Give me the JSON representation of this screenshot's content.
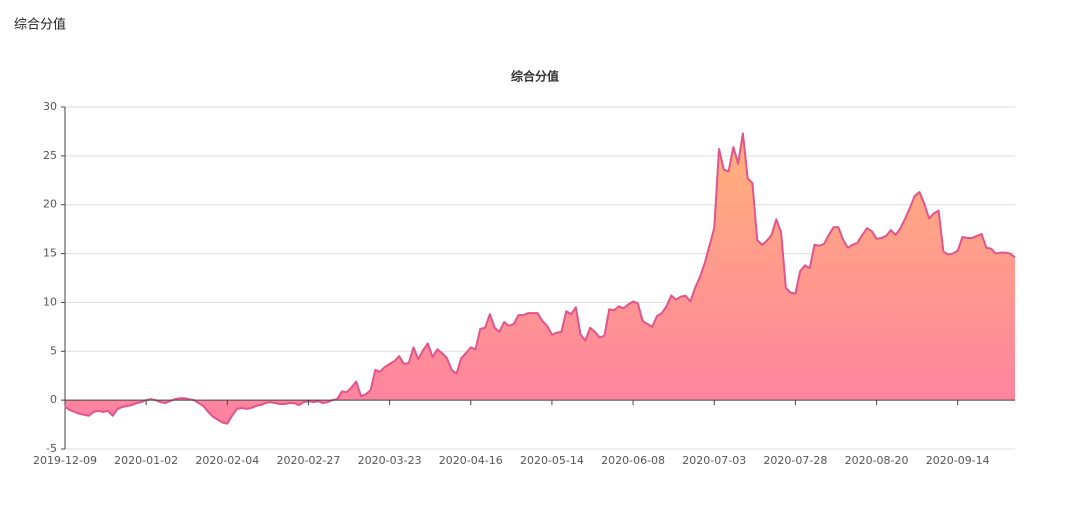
{
  "page_title": "综合分值",
  "chart_data": {
    "type": "area",
    "title": "综合分值",
    "categories": [
      "2019-12-09",
      null,
      null,
      null,
      null,
      null,
      null,
      null,
      null,
      null,
      null,
      null,
      null,
      null,
      null,
      null,
      null,
      "2020-01-02",
      null,
      null,
      null,
      null,
      null,
      null,
      null,
      null,
      null,
      null,
      null,
      null,
      null,
      null,
      null,
      null,
      "2020-02-04",
      null,
      null,
      null,
      null,
      null,
      null,
      null,
      null,
      null,
      null,
      null,
      null,
      null,
      null,
      null,
      null,
      "2020-02-27",
      null,
      null,
      null,
      null,
      null,
      null,
      null,
      null,
      null,
      null,
      null,
      null,
      null,
      null,
      null,
      null,
      "2020-03-23",
      null,
      null,
      null,
      null,
      null,
      null,
      null,
      null,
      null,
      null,
      null,
      null,
      null,
      null,
      null,
      null,
      "2020-04-16",
      null,
      null,
      null,
      null,
      null,
      null,
      null,
      null,
      null,
      null,
      null,
      null,
      null,
      null,
      null,
      null,
      "2020-05-14",
      null,
      null,
      null,
      null,
      null,
      null,
      null,
      null,
      null,
      null,
      null,
      null,
      null,
      null,
      null,
      null,
      "2020-06-08",
      null,
      null,
      null,
      null,
      null,
      null,
      null,
      null,
      null,
      null,
      null,
      null,
      null,
      null,
      null,
      null,
      "2020-07-03",
      null,
      null,
      null,
      null,
      null,
      null,
      null,
      null,
      null,
      null,
      null,
      null,
      null,
      null,
      null,
      null,
      "2020-07-28",
      null,
      null,
      null,
      null,
      null,
      null,
      null,
      null,
      null,
      null,
      null,
      null,
      null,
      null,
      null,
      null,
      "2020-08-20",
      null,
      null,
      null,
      null,
      null,
      null,
      null,
      null,
      null,
      null,
      null,
      null,
      null,
      null,
      null,
      null,
      "2020-09-14",
      null,
      null,
      null,
      null,
      null,
      null,
      null,
      null,
      null,
      null,
      null,
      null
    ],
    "values": [
      -0.7,
      -1.0,
      -1.2,
      -1.4,
      -1.5,
      -1.6,
      -1.2,
      -1.1,
      -1.2,
      -1.1,
      -1.6,
      -0.9,
      -0.7,
      -0.6,
      -0.5,
      -0.3,
      -0.2,
      0.0,
      0.1,
      0.0,
      -0.2,
      -0.3,
      -0.1,
      0.1,
      0.2,
      0.2,
      0.1,
      0.0,
      -0.3,
      -0.6,
      -1.2,
      -1.7,
      -2.0,
      -2.3,
      -2.4,
      -1.6,
      -0.9,
      -0.8,
      -0.9,
      -0.8,
      -0.6,
      -0.5,
      -0.3,
      -0.2,
      -0.3,
      -0.4,
      -0.4,
      -0.3,
      -0.3,
      -0.5,
      -0.2,
      -0.1,
      -0.2,
      -0.1,
      -0.3,
      -0.2,
      0.0,
      0.1,
      0.9,
      0.8,
      1.3,
      1.9,
      0.4,
      0.6,
      1.0,
      3.1,
      2.9,
      3.4,
      3.7,
      4.0,
      4.5,
      3.7,
      3.8,
      5.4,
      4.2,
      5.1,
      5.8,
      4.4,
      5.2,
      4.8,
      4.3,
      3.1,
      2.7,
      4.3,
      4.8,
      5.4,
      5.2,
      7.3,
      7.4,
      8.8,
      7.4,
      7.0,
      8.0,
      7.6,
      7.8,
      8.7,
      8.7,
      8.9,
      8.9,
      8.9,
      8.1,
      7.6,
      6.7,
      6.9,
      7.0,
      9.1,
      8.8,
      9.5,
      6.7,
      6.1,
      7.4,
      7.0,
      6.4,
      6.6,
      9.3,
      9.2,
      9.6,
      9.4,
      9.8,
      10.1,
      9.9,
      8.1,
      7.8,
      7.5,
      8.6,
      8.9,
      9.6,
      10.7,
      10.3,
      10.6,
      10.7,
      10.1,
      11.5,
      12.6,
      14.0,
      15.8,
      17.6,
      25.7,
      23.6,
      23.4,
      25.9,
      24.2,
      27.3,
      22.7,
      22.2,
      16.4,
      15.9,
      16.3,
      16.9,
      18.5,
      17.2,
      11.5,
      11.0,
      10.9,
      13.2,
      13.8,
      13.5,
      15.9,
      15.8,
      16.0,
      16.9,
      17.7,
      17.7,
      16.4,
      15.6,
      15.9,
      16.1,
      16.9,
      17.6,
      17.3,
      16.5,
      16.6,
      16.8,
      17.4,
      16.9,
      17.6,
      18.6,
      19.7,
      20.9,
      21.3,
      20.1,
      18.6,
      19.1,
      19.4,
      15.2,
      14.9,
      15.0,
      15.3,
      16.7,
      16.6,
      16.6,
      16.8,
      17.0,
      15.6,
      15.5,
      15.0,
      15.1,
      15.1,
      15.0,
      14.6
    ],
    "color": "#e2548c",
    "area_colors": [
      "#ffb17a",
      "#ff80a2"
    ],
    "ylim": [
      -5,
      30
    ],
    "yticks": [
      -5,
      0,
      5,
      10,
      15,
      20,
      25,
      30
    ],
    "grid": true
  }
}
